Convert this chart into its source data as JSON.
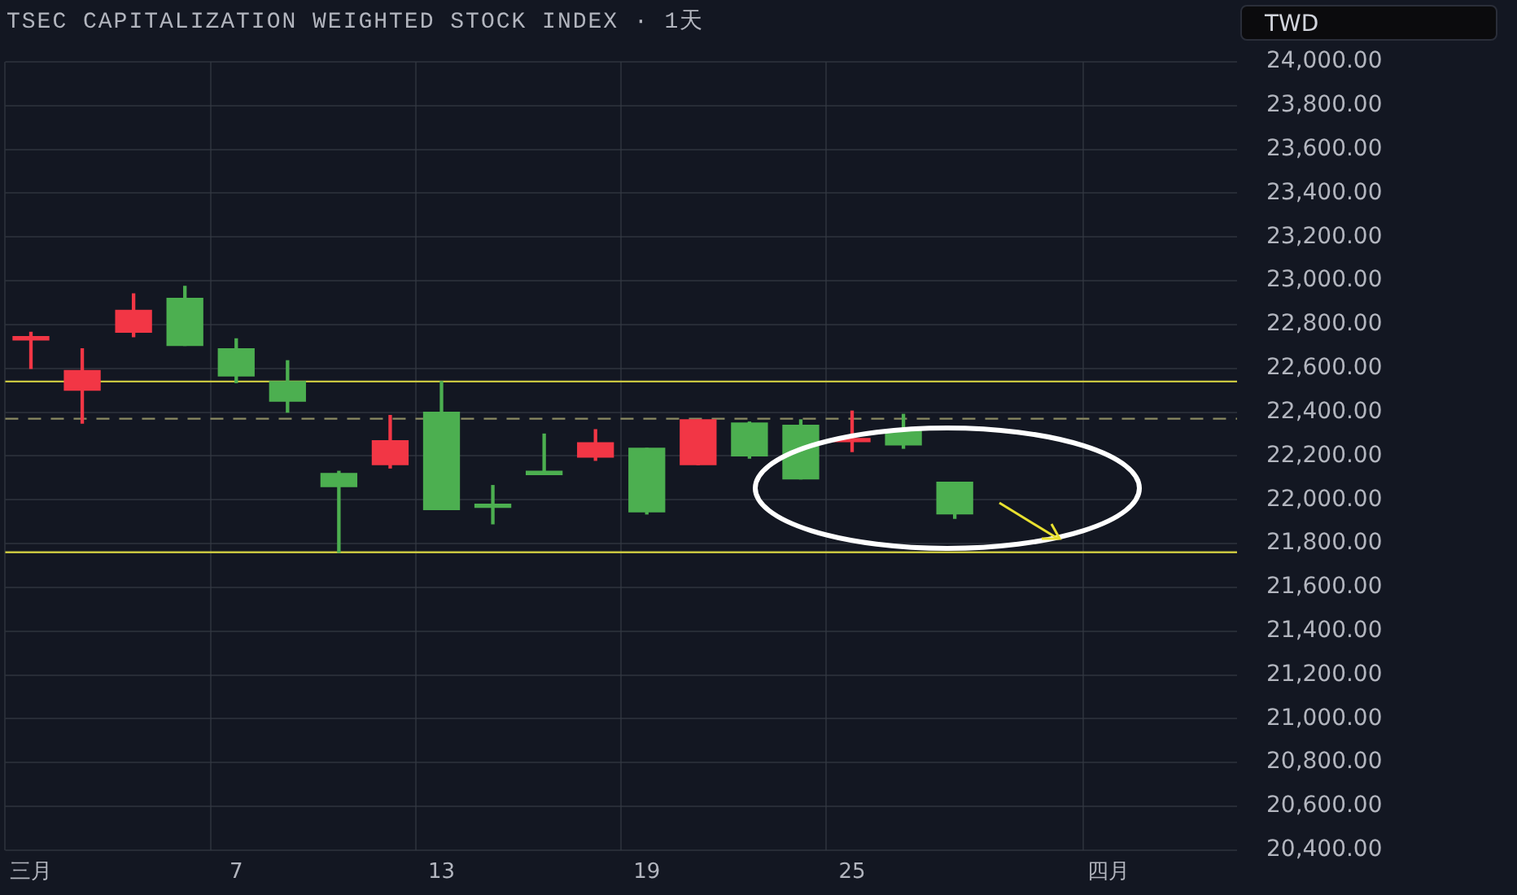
{
  "chart_data": {
    "type": "candlestick",
    "title": "TSEC CAPITALIZATION WEIGHTED STOCK INDEX · 1天",
    "ylabel": "TWD",
    "categories": [
      "三月",
      null,
      null,
      null,
      "7",
      null,
      null,
      null,
      "13",
      null,
      null,
      null,
      "19",
      null,
      null,
      null,
      "25",
      null,
      null,
      null,
      null,
      "四月",
      null,
      null
    ],
    "ohlc": [
      [
        22740,
        22765,
        22600,
        22730
      ],
      [
        22590,
        22690,
        22350,
        22500
      ],
      [
        22865,
        22940,
        22745,
        22765
      ],
      [
        22705,
        22975,
        22705,
        22920
      ],
      [
        22565,
        22735,
        22535,
        22690
      ],
      [
        22450,
        22635,
        22400,
        22540
      ],
      [
        22060,
        22130,
        21760,
        22120
      ],
      [
        22270,
        22385,
        22145,
        22160
      ],
      [
        21955,
        22540,
        21955,
        22400
      ],
      [
        21965,
        22065,
        21890,
        21975
      ],
      [
        22115,
        22300,
        22115,
        22125
      ],
      [
        22260,
        22320,
        22180,
        22195
      ],
      [
        21945,
        22235,
        21935,
        22235
      ],
      [
        22365,
        22365,
        22160,
        22160
      ],
      [
        22200,
        22355,
        22190,
        22350
      ],
      [
        22095,
        22365,
        22095,
        22340
      ],
      [
        22275,
        22405,
        22220,
        22265
      ],
      [
        22250,
        22390,
        22235,
        22320
      ],
      [
        21935,
        22080,
        21915,
        22080
      ],
      null,
      null,
      null,
      null,
      null
    ],
    "colors": [
      "#f23645",
      "#f23645",
      "#f23645",
      "#4caf50",
      "#4caf50",
      "#4caf50",
      "#4caf50",
      "#f23645",
      "#4caf50",
      "#4caf50",
      "#4caf50",
      "#f23645",
      "#4caf50",
      "#f23645",
      "#4caf50",
      "#4caf50",
      "#f23645",
      "#4caf50",
      "#4caf50",
      null,
      null,
      null,
      null,
      null
    ],
    "ylim": [
      20400,
      24000
    ],
    "yticks": [
      {
        "value": 20400,
        "label": "20,400.00"
      },
      {
        "value": 20600,
        "label": "20,600.00"
      },
      {
        "value": 20800,
        "label": "20,800.00"
      },
      {
        "value": 21000,
        "label": "21,000.00"
      },
      {
        "value": 21200,
        "label": "21,200.00"
      },
      {
        "value": 21400,
        "label": "21,400.00"
      },
      {
        "value": 21600,
        "label": "21,600.00"
      },
      {
        "value": 21800,
        "label": "21,800.00"
      },
      {
        "value": 22000,
        "label": "22,000.00"
      },
      {
        "value": 22200,
        "label": "22,200.00"
      },
      {
        "value": 22400,
        "label": "22,400.00"
      },
      {
        "value": 22600,
        "label": "22,600.00"
      },
      {
        "value": 22800,
        "label": "22,800.00"
      },
      {
        "value": 23000,
        "label": "23,000.00"
      },
      {
        "value": 23200,
        "label": "23,200.00"
      },
      {
        "value": 23400,
        "label": "23,400.00"
      },
      {
        "value": 23600,
        "label": "23,600.00"
      },
      {
        "value": 23800,
        "label": "23,800.00"
      },
      {
        "value": 24000,
        "label": "24,000.00"
      }
    ],
    "ref_lines": [
      {
        "axis": "y",
        "value": 22540,
        "color": "#c9c640",
        "line_style": "solid"
      },
      {
        "axis": "y",
        "value": 21760,
        "color": "#c9c640",
        "line_style": "solid"
      },
      {
        "axis": "y",
        "value": 22370,
        "color": "#8c8a63",
        "line_style": "dashed"
      }
    ],
    "grid": true,
    "legend": false
  }
}
